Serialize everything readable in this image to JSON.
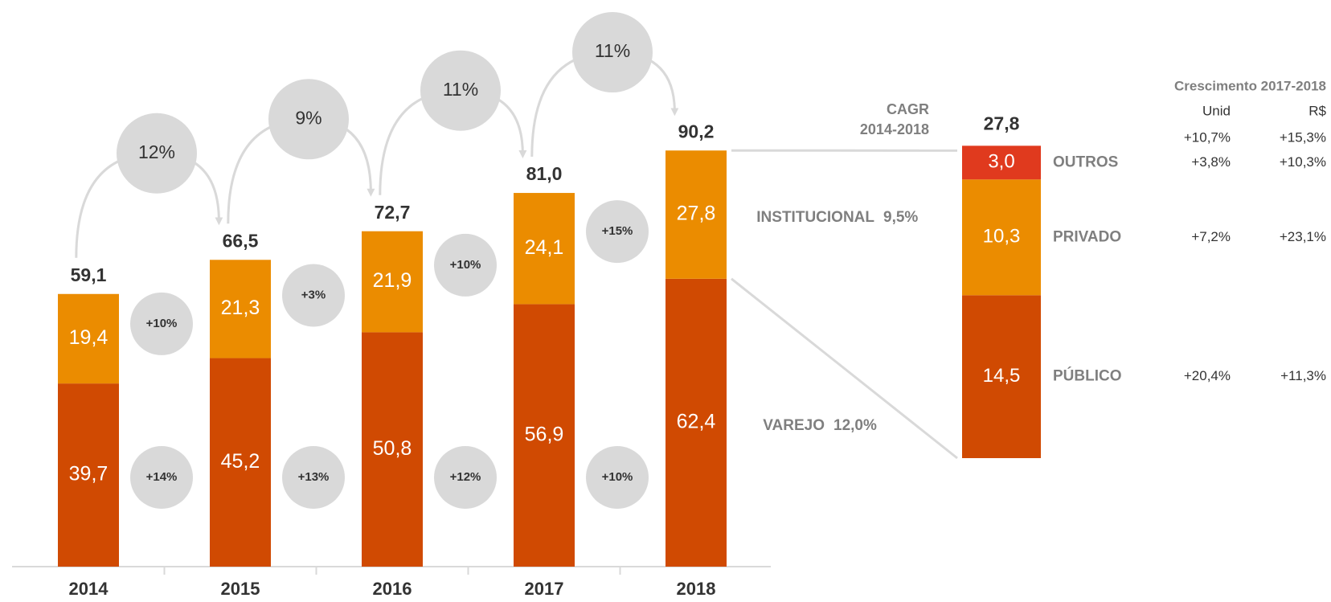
{
  "chart_data": [
    {
      "type": "bar",
      "stacked": true,
      "categories": [
        "2014",
        "2015",
        "2016",
        "2017",
        "2018"
      ],
      "series": [
        {
          "name": "VAREJO",
          "color": "#d04a02",
          "values": [
            39.7,
            45.2,
            50.8,
            56.9,
            62.4
          ],
          "value_labels": [
            "39,7",
            "45,2",
            "50,8",
            "56,9",
            "62,4"
          ],
          "cagr": "12,0%",
          "growth_labels": [
            "+14%",
            "+13%",
            "+12%",
            "+10%"
          ]
        },
        {
          "name": "INSTITUCIONAL",
          "color": "#eb8c00",
          "values": [
            19.4,
            21.3,
            21.9,
            24.1,
            27.8
          ],
          "value_labels": [
            "19,4",
            "21,3",
            "21,9",
            "24,1",
            "27,8"
          ],
          "cagr": "9,5%",
          "growth_labels": [
            "+10%",
            "+3%",
            "+10%",
            "+15%"
          ]
        }
      ],
      "totals": [
        59.1,
        66.5,
        72.7,
        81.0,
        90.2
      ],
      "total_labels": [
        "59,1",
        "66,5",
        "72,7",
        "81,0",
        "90,2"
      ],
      "total_growth_labels": [
        "12%",
        "9%",
        "11%",
        "11%"
      ],
      "cagr_title": [
        "CAGR",
        "2014-2018"
      ]
    },
    {
      "type": "bar",
      "stacked": true,
      "series": [
        {
          "name": "PÚBLICO",
          "color": "#d04a02",
          "values": [
            14.5
          ],
          "value_labels": [
            "14,5"
          ],
          "growth": [
            "+20,4%",
            "+11,3%"
          ]
        },
        {
          "name": "PRIVADO",
          "color": "#eb8c00",
          "values": [
            10.3
          ],
          "value_labels": [
            "10,3"
          ],
          "growth": [
            "+7,2%",
            "+23,1%"
          ]
        },
        {
          "name": "OUTROS",
          "color": "#e03a1e",
          "values": [
            3.0
          ],
          "value_labels": [
            "3,0"
          ],
          "growth": [
            "+3,8%",
            "+10,3%"
          ]
        }
      ],
      "total": 27.8,
      "total_label": "27,8",
      "table": {
        "title": "Crescimento 2017-2018",
        "columns": [
          "Unid",
          "R$"
        ],
        "total_row": [
          "+10,7%",
          "+15,3%"
        ]
      }
    }
  ]
}
